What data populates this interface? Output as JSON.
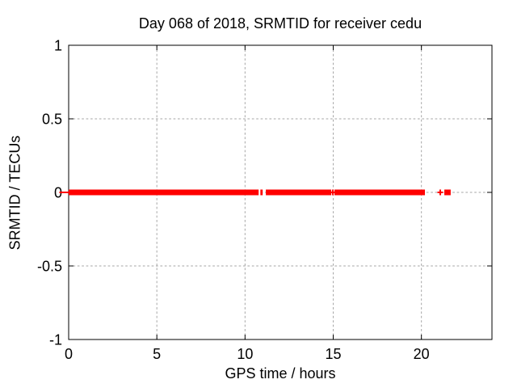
{
  "chart_data": {
    "type": "scatter",
    "title": "Day 068 of 2018, SRMTID for receiver cedu",
    "xlabel": "GPS time / hours",
    "ylabel": "SRMTID / TECUs",
    "xlim": [
      0,
      24
    ],
    "ylim": [
      -1,
      1
    ],
    "x_ticks": [
      0,
      5,
      10,
      15,
      20
    ],
    "x_tick_labels": [
      "0",
      "5",
      "10",
      "15",
      "20"
    ],
    "y_ticks": [
      1,
      0.5,
      0,
      -0.5,
      -1
    ],
    "y_tick_labels": [
      "1",
      "0.5",
      "0",
      "-0.5",
      "-1"
    ],
    "grid": true,
    "legend": "none",
    "series": [
      {
        "name": "SRMTID",
        "color": "#ff0000",
        "marker": "plus",
        "y_value": 0,
        "segments_hours": [
          [
            0,
            10.77
          ],
          [
            10.87,
            11.0
          ],
          [
            11.18,
            14.89
          ],
          [
            15.07,
            20.2
          ],
          [
            21.3,
            21.66
          ]
        ],
        "isolated_points_hours": [
          14.98,
          21.07
        ]
      }
    ],
    "colors": {
      "grid": "#a6a6a6",
      "border": "#000000",
      "background": "#ffffff",
      "text": "#000000"
    }
  }
}
